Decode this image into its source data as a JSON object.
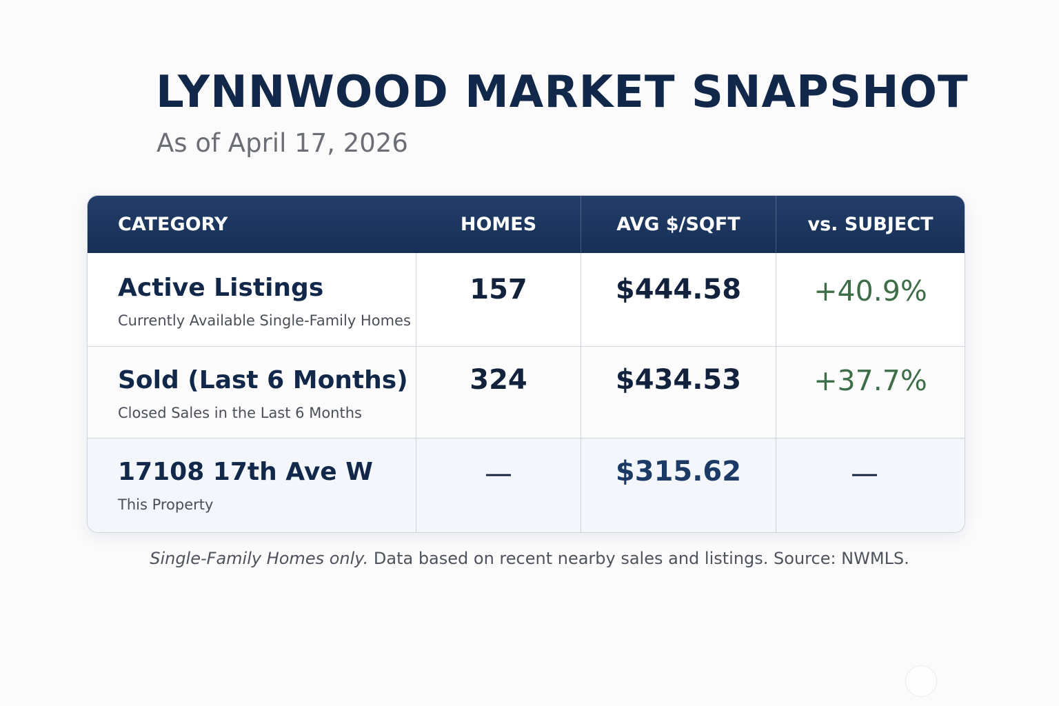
{
  "title": "LYNNWOOD MARKET SNAPSHOT",
  "subtitle": "As of April 17, 2026",
  "table": {
    "headers": [
      "CATEGORY",
      "HOMES",
      "AVG $/SQFT",
      "vs. SUBJECT"
    ],
    "rows": [
      {
        "category": "Active Listings",
        "description": "Currently Available Single-Family Homes",
        "homes": "157",
        "avg_sqft": "$444.58",
        "vs_subject": "+40.9%"
      },
      {
        "category": "Sold (Last 6 Months)",
        "description": "Closed Sales in the Last 6 Months",
        "homes": "324",
        "avg_sqft": "$434.53",
        "vs_subject": "+37.7%"
      },
      {
        "category": "17108 17th Ave W",
        "description": "This Property",
        "homes": "—",
        "avg_sqft": "$315.62",
        "vs_subject": "—"
      }
    ]
  },
  "footnote": {
    "italic": "Single-Family Homes only.",
    "text": " Data based on recent nearby sales and listings. Source: NWMLS."
  },
  "colors": {
    "header_bg": "#1b355f",
    "title": "#12284a",
    "positive": "#3d6e47",
    "subject_price": "#1b3a66"
  }
}
